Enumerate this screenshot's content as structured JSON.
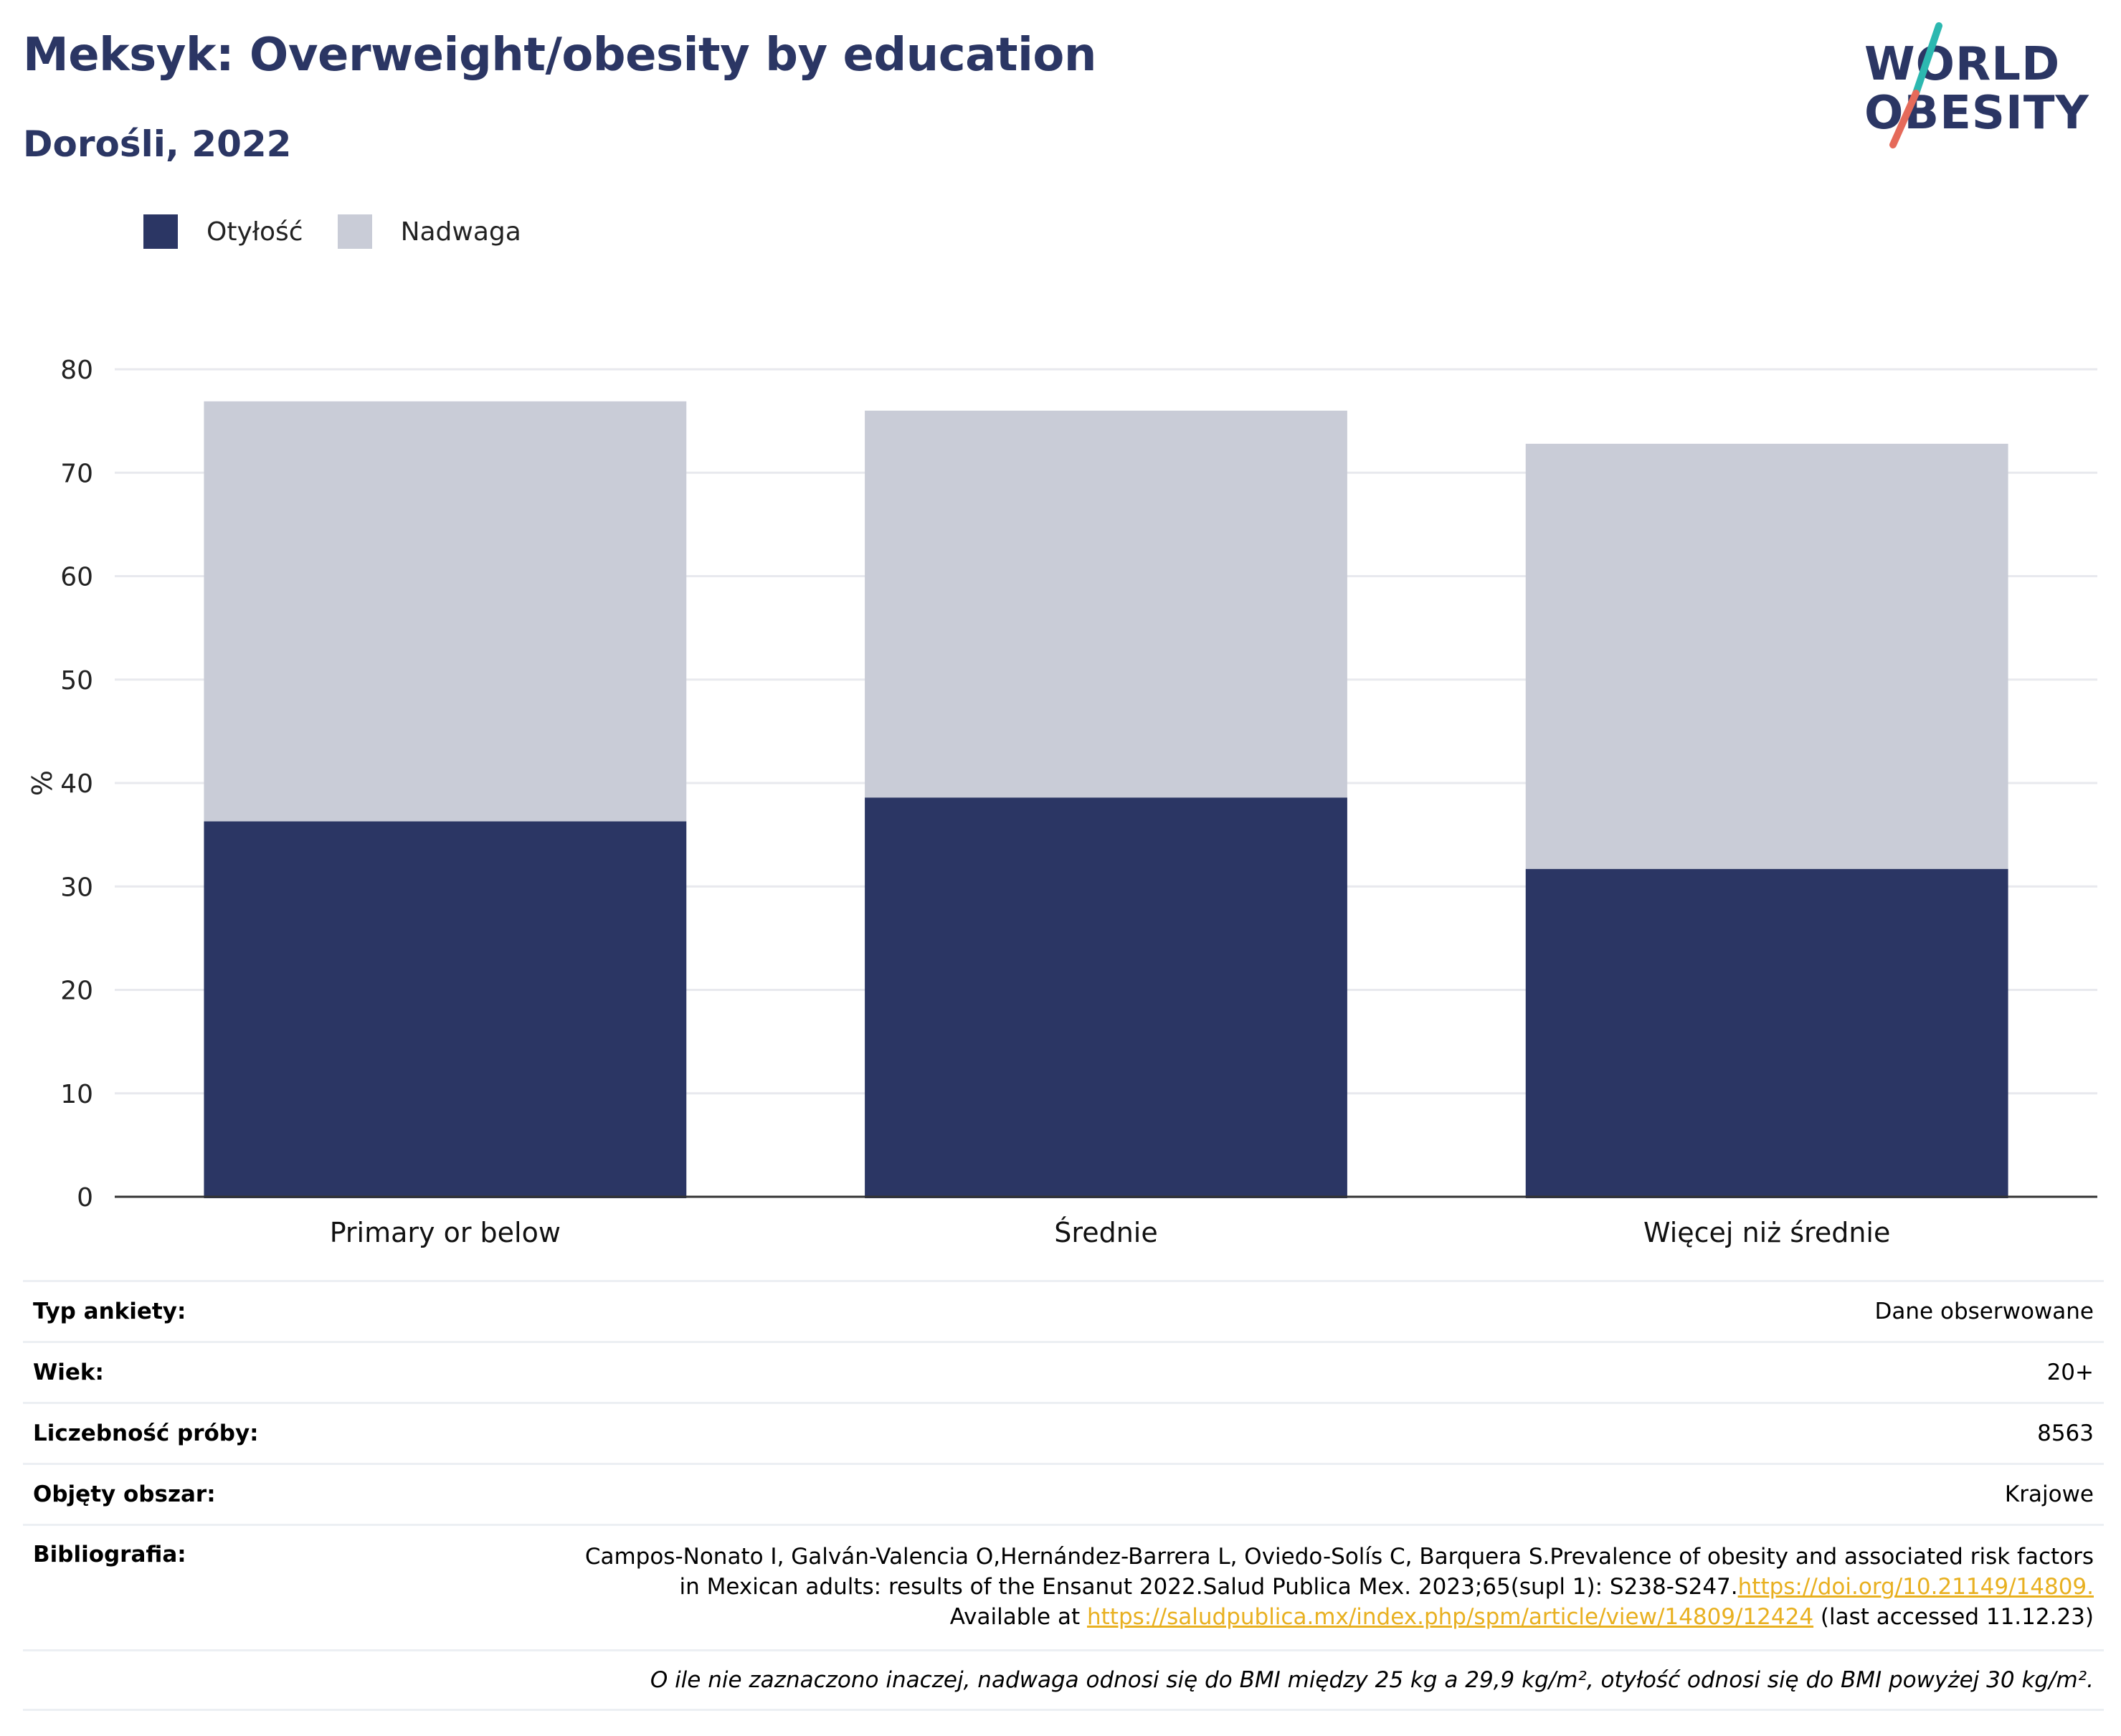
{
  "header": {
    "title": "Meksyk: Overweight/obesity by education",
    "subtitle": "Dorośli, 2022"
  },
  "logo": {
    "line1": "WORLD",
    "line2": "OBESITY",
    "line1_letters": [
      "W",
      "O",
      "RLD"
    ],
    "line2_letters": [
      "O",
      "BESITY"
    ],
    "colors": {
      "text": "#2b3664",
      "slash_top": "#2cb8b0",
      "slash_bottom": "#e56a5a"
    }
  },
  "legend": [
    {
      "label": "Otyłość",
      "color": "#2b3664"
    },
    {
      "label": "Nadwaga",
      "color": "#c9ccd7"
    }
  ],
  "chart_data": {
    "type": "bar",
    "stacked": true,
    "categories": [
      "Primary or below",
      "Średnie",
      "Więcej niż średnie"
    ],
    "series": [
      {
        "name": "Otyłość",
        "values": [
          36.3,
          38.6,
          31.7
        ],
        "color": "#2b3664"
      },
      {
        "name": "Nadwaga",
        "values": [
          40.6,
          37.4,
          41.1
        ],
        "color": "#c9ccd7"
      }
    ],
    "ylabel": "%",
    "ylim": [
      0,
      80
    ],
    "yticks": [
      0,
      10,
      20,
      30,
      40,
      50,
      60,
      70,
      80
    ],
    "grid": true,
    "legend_position": "top-left"
  },
  "info": {
    "rows": [
      {
        "key": "Typ ankiety:",
        "value": "Dane obserwowane"
      },
      {
        "key": "Wiek:",
        "value": "20+"
      },
      {
        "key": "Liczebność próby:",
        "value": "8563"
      },
      {
        "key": "Objęty obszar:",
        "value": "Krajowe"
      }
    ],
    "bibliography": {
      "key": "Bibliografia:",
      "line1": "Campos-Nonato I, Galván-Valencia O,Hernández-Barrera L, Oviedo-Solís C, Barquera S.Prevalence of obesity and associated risk factors",
      "line2_text": "in Mexican adults: results of the Ensanut 2022.Salud Publica Mex. 2023;65(supl 1): S238-S247.",
      "line2_link": "https://doi.org/10.21149/14809.",
      "line3_pre": "Available at ",
      "line3_link": "https://saludpublica.mx/index.php/spm/article/view/14809/12424",
      "line3_post": " (last accessed 11.12.23)"
    },
    "note": "O ile nie zaznaczono inaczej, nadwaga odnosi się do BMI między 25 kg a 29,9 kg/m², otyłość odnosi się do BMI powyżej 30 kg/m²."
  }
}
